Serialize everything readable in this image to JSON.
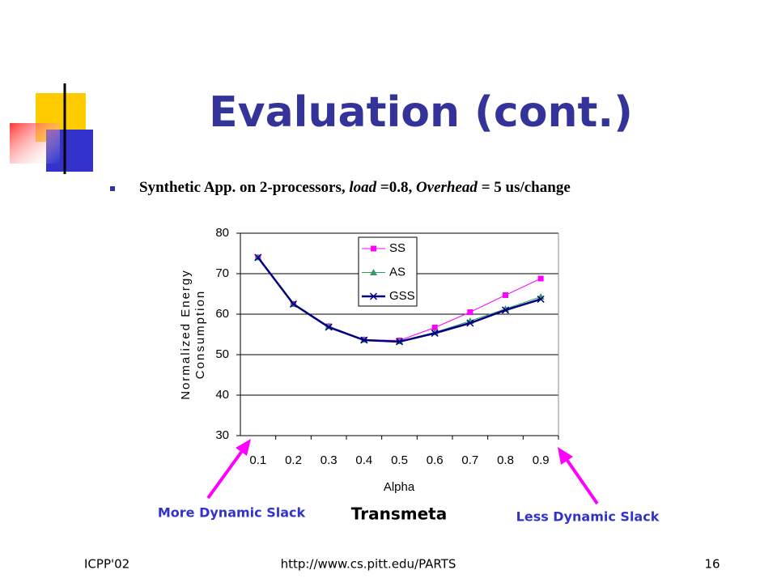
{
  "slide_title": "Evaluation (cont.)",
  "bullet": [
    "Synthetic App. on 2-processors, ",
    "load",
    " =0.8, ",
    "Overhead",
    " = 5 us/change"
  ],
  "annotations": {
    "left": "More Dynamic Slack",
    "center": "Transmeta",
    "right": "Less Dynamic Slack"
  },
  "footer": {
    "left": "ICPP'02",
    "center": "http://www.cs.pitt.edu/PARTS",
    "right": "16"
  },
  "chart_data": {
    "type": "line",
    "x_label": "Alpha",
    "y_label": [
      "Normalized Energy",
      "Consumption"
    ],
    "categories": [
      "0.1",
      "0.2",
      "0.3",
      "0.4",
      "0.5",
      "0.6",
      "0.7",
      "0.8",
      "0.9"
    ],
    "series": [
      {
        "name": "SS",
        "color": "#ff00ff",
        "marker": "square",
        "values": [
          74,
          62.5,
          57,
          53.7,
          53.5,
          56.7,
          60.5,
          64.7,
          68.8
        ]
      },
      {
        "name": "AS",
        "color": "#339966",
        "marker": "triangle",
        "values": [
          74,
          62.5,
          57,
          53.7,
          53.3,
          55.5,
          58.3,
          61.3,
          64.3
        ]
      },
      {
        "name": "GSS",
        "color": "#000080",
        "marker": "x",
        "values": [
          74,
          62.5,
          56.8,
          53.6,
          53.2,
          55.3,
          57.8,
          61,
          63.7
        ]
      }
    ],
    "ylim": [
      30,
      80
    ],
    "yticks": [
      30,
      40,
      50,
      60,
      70,
      80
    ],
    "grid": true
  }
}
